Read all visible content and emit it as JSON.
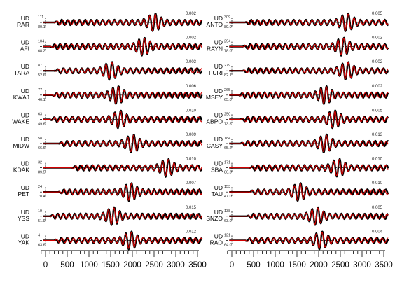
{
  "chart_data": {
    "type": "line",
    "colors": {
      "observed": "#000000",
      "synthetic": "#d40000"
    },
    "x_axis": {
      "range": [
        -100,
        3600
      ],
      "tick_labels": [
        "0",
        "500",
        "1000",
        "1500",
        "2000",
        "2500",
        "3000",
        "3500"
      ],
      "tick_values": [
        0,
        500,
        1000,
        1500,
        2000,
        2500,
        3000,
        3500
      ],
      "minor_tick_step": 100
    },
    "panels": [
      {
        "traces": [
          {
            "component": "UD",
            "station": "RAR",
            "azimuth": "111",
            "distance": "80.1",
            "amplitude": "0.002",
            "center": 2500,
            "start": 200,
            "period": 135
          },
          {
            "component": "UD",
            "station": "AFI",
            "azimuth": "104",
            "distance": "68.2",
            "amplitude": "0.002",
            "center": 2250,
            "start": 100,
            "period": 130
          },
          {
            "component": "UD",
            "station": "TARA",
            "azimuth": "87",
            "distance": "52.6",
            "amplitude": "0.003",
            "center": 1500,
            "start": 200,
            "period": 140
          },
          {
            "component": "UD",
            "station": "KWAJ",
            "azimuth": "77",
            "distance": "46.1",
            "amplitude": "0.006",
            "center": 1650,
            "start": 150,
            "period": 130
          },
          {
            "component": "UD",
            "station": "WAKE",
            "azimuth": "63",
            "distance": "49.6",
            "amplitude": "0.010",
            "center": 1700,
            "start": 100,
            "period": 140
          },
          {
            "component": "UD",
            "station": "MIDW",
            "azimuth": "58",
            "distance": "66.6",
            "amplitude": "0.009",
            "center": 2000,
            "start": 300,
            "period": 140
          },
          {
            "component": "UD",
            "station": "KDAK",
            "azimuth": "32",
            "distance": "89.5",
            "amplitude": "0.010",
            "center": 2800,
            "start": 600,
            "period": 135
          },
          {
            "component": "UD",
            "station": "PET",
            "azimuth": "24",
            "distance": "70.4",
            "amplitude": "0.007",
            "center": 1950,
            "start": 300,
            "period": 130
          },
          {
            "component": "UD",
            "station": "YSS",
            "azimuth": "19",
            "distance": "51.9",
            "amplitude": "0.015",
            "center": 1550,
            "start": 100,
            "period": 130
          },
          {
            "component": "UD",
            "station": "YAK",
            "azimuth": "4",
            "distance": "63.6",
            "amplitude": "0.012",
            "center": 1950,
            "start": 200,
            "period": 135
          }
        ]
      },
      {
        "traces": [
          {
            "component": "UD",
            "station": "ANTO",
            "azimuth": "309",
            "distance": "89.0",
            "amplitude": "0.005",
            "center": 2650,
            "start": 300,
            "period": 140
          },
          {
            "component": "UD",
            "station": "RAYN",
            "azimuth": "294",
            "distance": "78.0",
            "amplitude": "0.002",
            "center": 2550,
            "start": 250,
            "period": 135
          },
          {
            "component": "UD",
            "station": "FURI",
            "azimuth": "279",
            "distance": "82.1",
            "amplitude": "0.002",
            "center": 2650,
            "start": 250,
            "period": 135
          },
          {
            "component": "UD",
            "station": "MSEY",
            "azimuth": "265",
            "distance": "65.0",
            "amplitude": "0.002",
            "center": 2150,
            "start": 150,
            "period": 130
          },
          {
            "component": "UD",
            "station": "ABPO",
            "azimuth": "250",
            "distance": "73.8",
            "amplitude": "0.005",
            "center": 2350,
            "start": 200,
            "period": 135
          },
          {
            "component": "UD",
            "station": "CASY",
            "azimuth": "184",
            "distance": "65.2",
            "amplitude": "0.013",
            "center": 2150,
            "start": 200,
            "period": 140
          },
          {
            "component": "UD",
            "station": "SBA",
            "azimuth": "171",
            "distance": "80.3",
            "amplitude": "0.010",
            "center": 2450,
            "start": 400,
            "period": 135
          },
          {
            "component": "UD",
            "station": "TAU",
            "azimuth": "153",
            "distance": "47.0",
            "amplitude": "0.010",
            "center": 1550,
            "start": 400,
            "period": 140
          },
          {
            "component": "UD",
            "station": "SNZO",
            "azimuth": "138",
            "distance": "63.0",
            "amplitude": "0.005",
            "center": 1950,
            "start": 350,
            "period": 135
          },
          {
            "component": "UD",
            "station": "RAO",
            "azimuth": "121",
            "distance": "64.0",
            "amplitude": "0.004",
            "center": 2050,
            "start": 300,
            "period": 140
          }
        ]
      }
    ]
  }
}
